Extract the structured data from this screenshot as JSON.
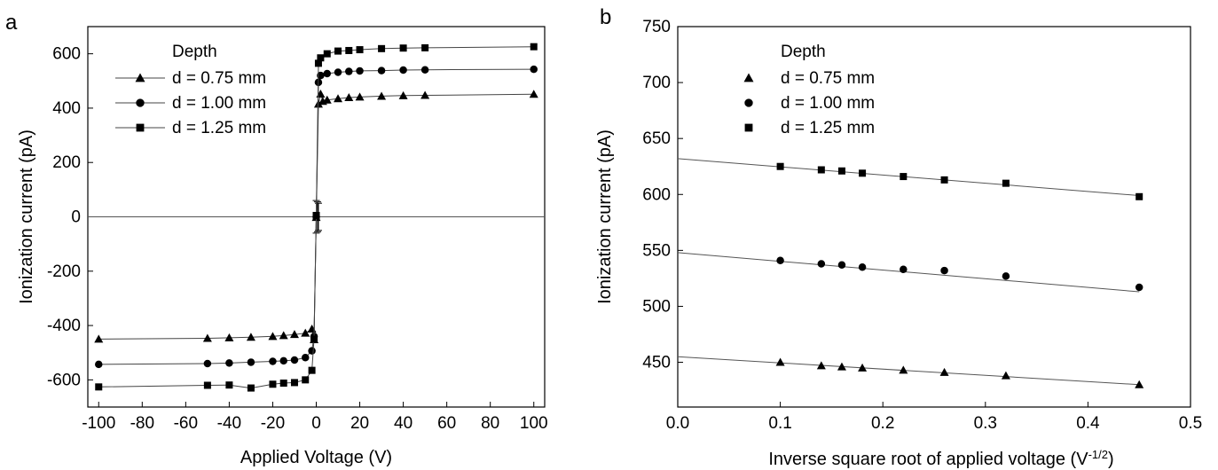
{
  "chart_data": [
    {
      "panel": "a",
      "type": "line",
      "xlabel": "Applied Voltage (V)",
      "ylabel": "Ionization current (pA)",
      "xlim": [
        -105,
        105
      ],
      "ylim": [
        -700,
        700
      ],
      "xticks": [
        -100,
        -80,
        -60,
        -40,
        -20,
        0,
        20,
        40,
        60,
        80,
        100
      ],
      "yticks": [
        -600,
        -400,
        -200,
        0,
        200,
        400,
        600
      ],
      "legend_title": "Depth",
      "legend_position": "top-left",
      "grid": false,
      "series": [
        {
          "name": "d = 0.75 mm",
          "marker": "triangle",
          "points": [
            [
              -100,
              -450
            ],
            [
              -50,
              -447
            ],
            [
              -40,
              -445
            ],
            [
              -30,
              -443
            ],
            [
              -20,
              -440
            ],
            [
              -15,
              -437
            ],
            [
              -10,
              -433
            ],
            [
              -5,
              -428
            ],
            [
              -2,
              -413
            ],
            [
              -1,
              -452
            ],
            [
              0,
              -2
            ],
            [
              1,
              415
            ],
            [
              2,
              452
            ],
            [
              3,
              425
            ],
            [
              5,
              430
            ],
            [
              10,
              435
            ],
            [
              15,
              439
            ],
            [
              20,
              441
            ],
            [
              30,
              444
            ],
            [
              40,
              446
            ],
            [
              50,
              447
            ],
            [
              100,
              451
            ]
          ]
        },
        {
          "name": "d = 1.00 mm",
          "marker": "circle",
          "points": [
            [
              -100,
              -543
            ],
            [
              -50,
              -540
            ],
            [
              -40,
              -538
            ],
            [
              -30,
              -535
            ],
            [
              -20,
              -532
            ],
            [
              -15,
              -530
            ],
            [
              -10,
              -527
            ],
            [
              -5,
              -518
            ],
            [
              -2,
              -493
            ],
            [
              -1,
              -440
            ],
            [
              0,
              0
            ],
            [
              1,
              495
            ],
            [
              2,
              520
            ],
            [
              5,
              527
            ],
            [
              10,
              532
            ],
            [
              15,
              535
            ],
            [
              20,
              537
            ],
            [
              30,
              538
            ],
            [
              40,
              540
            ],
            [
              50,
              541
            ],
            [
              100,
              543
            ]
          ]
        },
        {
          "name": "d = 1.25 mm",
          "marker": "square",
          "points": [
            [
              -100,
              -626
            ],
            [
              -50,
              -620
            ],
            [
              -40,
              -619
            ],
            [
              -30,
              -630
            ],
            [
              -20,
              -616
            ],
            [
              -15,
              -612
            ],
            [
              -10,
              -610
            ],
            [
              -5,
              -600
            ],
            [
              -2,
              -565
            ],
            [
              -1,
              -450
            ],
            [
              0,
              5
            ],
            [
              1,
              565
            ],
            [
              2,
              585
            ],
            [
              5,
              600
            ],
            [
              10,
              610
            ],
            [
              15,
              612
            ],
            [
              20,
              615
            ],
            [
              30,
              619
            ],
            [
              40,
              621
            ],
            [
              50,
              622
            ],
            [
              100,
              626
            ]
          ]
        }
      ]
    },
    {
      "panel": "b",
      "type": "scatter",
      "xlabel_main": "Inverse square root of applied voltage (V",
      "xlabel_exp": "-1/2",
      "xlabel_close": ")",
      "ylabel": "Ionization current (pA)",
      "xlim": [
        0.0,
        0.5
      ],
      "ylim": [
        410,
        750
      ],
      "xticks": [
        "0.0",
        "0.1",
        "0.2",
        "0.3",
        "0.4",
        "0.5"
      ],
      "yticks": [
        450,
        500,
        550,
        600,
        650,
        700,
        750
      ],
      "legend_title": "Depth",
      "legend_position": "top-left",
      "grid": false,
      "series": [
        {
          "name": "d = 0.75 mm",
          "marker": "triangle",
          "points": [
            [
              0.1,
              450
            ],
            [
              0.14,
              447
            ],
            [
              0.16,
              446
            ],
            [
              0.18,
              445
            ],
            [
              0.22,
              443
            ],
            [
              0.26,
              441
            ],
            [
              0.32,
              438
            ],
            [
              0.45,
              430
            ]
          ],
          "fit": [
            [
              0.0,
              455
            ],
            [
              0.45,
              430
            ]
          ]
        },
        {
          "name": "d = 1.00 mm",
          "marker": "circle",
          "points": [
            [
              0.1,
              541
            ],
            [
              0.14,
              538
            ],
            [
              0.16,
              537
            ],
            [
              0.18,
              535
            ],
            [
              0.22,
              533
            ],
            [
              0.26,
              532
            ],
            [
              0.32,
              527
            ],
            [
              0.45,
              517
            ]
          ],
          "fit": [
            [
              0.0,
              548
            ],
            [
              0.45,
              513
            ]
          ]
        },
        {
          "name": "d = 1.25 mm",
          "marker": "square",
          "points": [
            [
              0.1,
              625
            ],
            [
              0.14,
              622
            ],
            [
              0.16,
              621
            ],
            [
              0.18,
              619
            ],
            [
              0.22,
              616
            ],
            [
              0.26,
              613
            ],
            [
              0.32,
              610
            ],
            [
              0.45,
              598
            ]
          ],
          "fit": [
            [
              0.0,
              632
            ],
            [
              0.45,
              599
            ]
          ]
        }
      ]
    }
  ],
  "panels": {
    "a_letter": "a",
    "b_letter": "b"
  }
}
